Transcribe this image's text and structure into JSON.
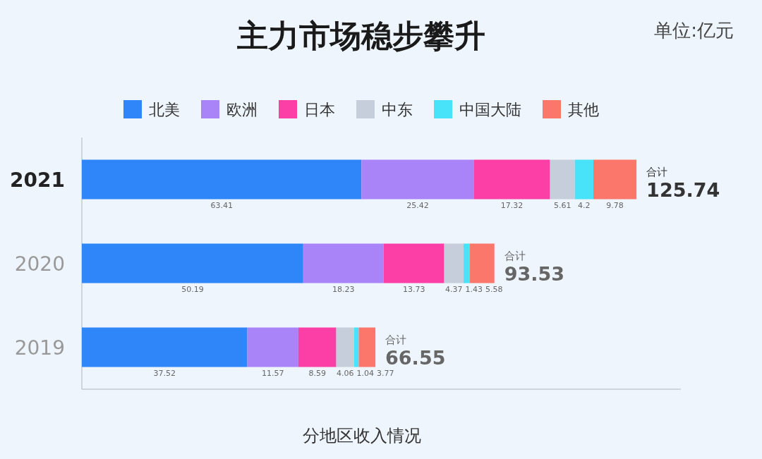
{
  "chart_data": {
    "type": "bar",
    "orientation": "horizontal",
    "stacked": true,
    "title": "主力市场稳步攀升",
    "xlabel": "分地区收入情况",
    "annotations": [
      "单位:亿元"
    ],
    "categories": [
      "2021",
      "2020",
      "2019"
    ],
    "series": [
      {
        "name": "北美",
        "color": "#2e86f9",
        "values": [
          63.41,
          50.19,
          37.52
        ]
      },
      {
        "name": "欧洲",
        "color": "#a983f8",
        "values": [
          25.42,
          18.23,
          11.57
        ]
      },
      {
        "name": "日本",
        "color": "#fb3fa6",
        "values": [
          17.32,
          13.73,
          8.59
        ]
      },
      {
        "name": "中东",
        "color": "#c5ceda",
        "values": [
          5.61,
          4.37,
          4.06
        ]
      },
      {
        "name": "中国大陆",
        "color": "#49e3f9",
        "values": [
          4.2,
          1.43,
          1.04
        ]
      },
      {
        "name": "其他",
        "color": "#fb766b",
        "values": [
          9.78,
          5.58,
          3.77
        ]
      }
    ],
    "totals": [
      "合计 125.74",
      "合计 93.53",
      "合计 66.55"
    ],
    "data_labels": true,
    "legend": "top",
    "tick_labels": "y"
  }
}
